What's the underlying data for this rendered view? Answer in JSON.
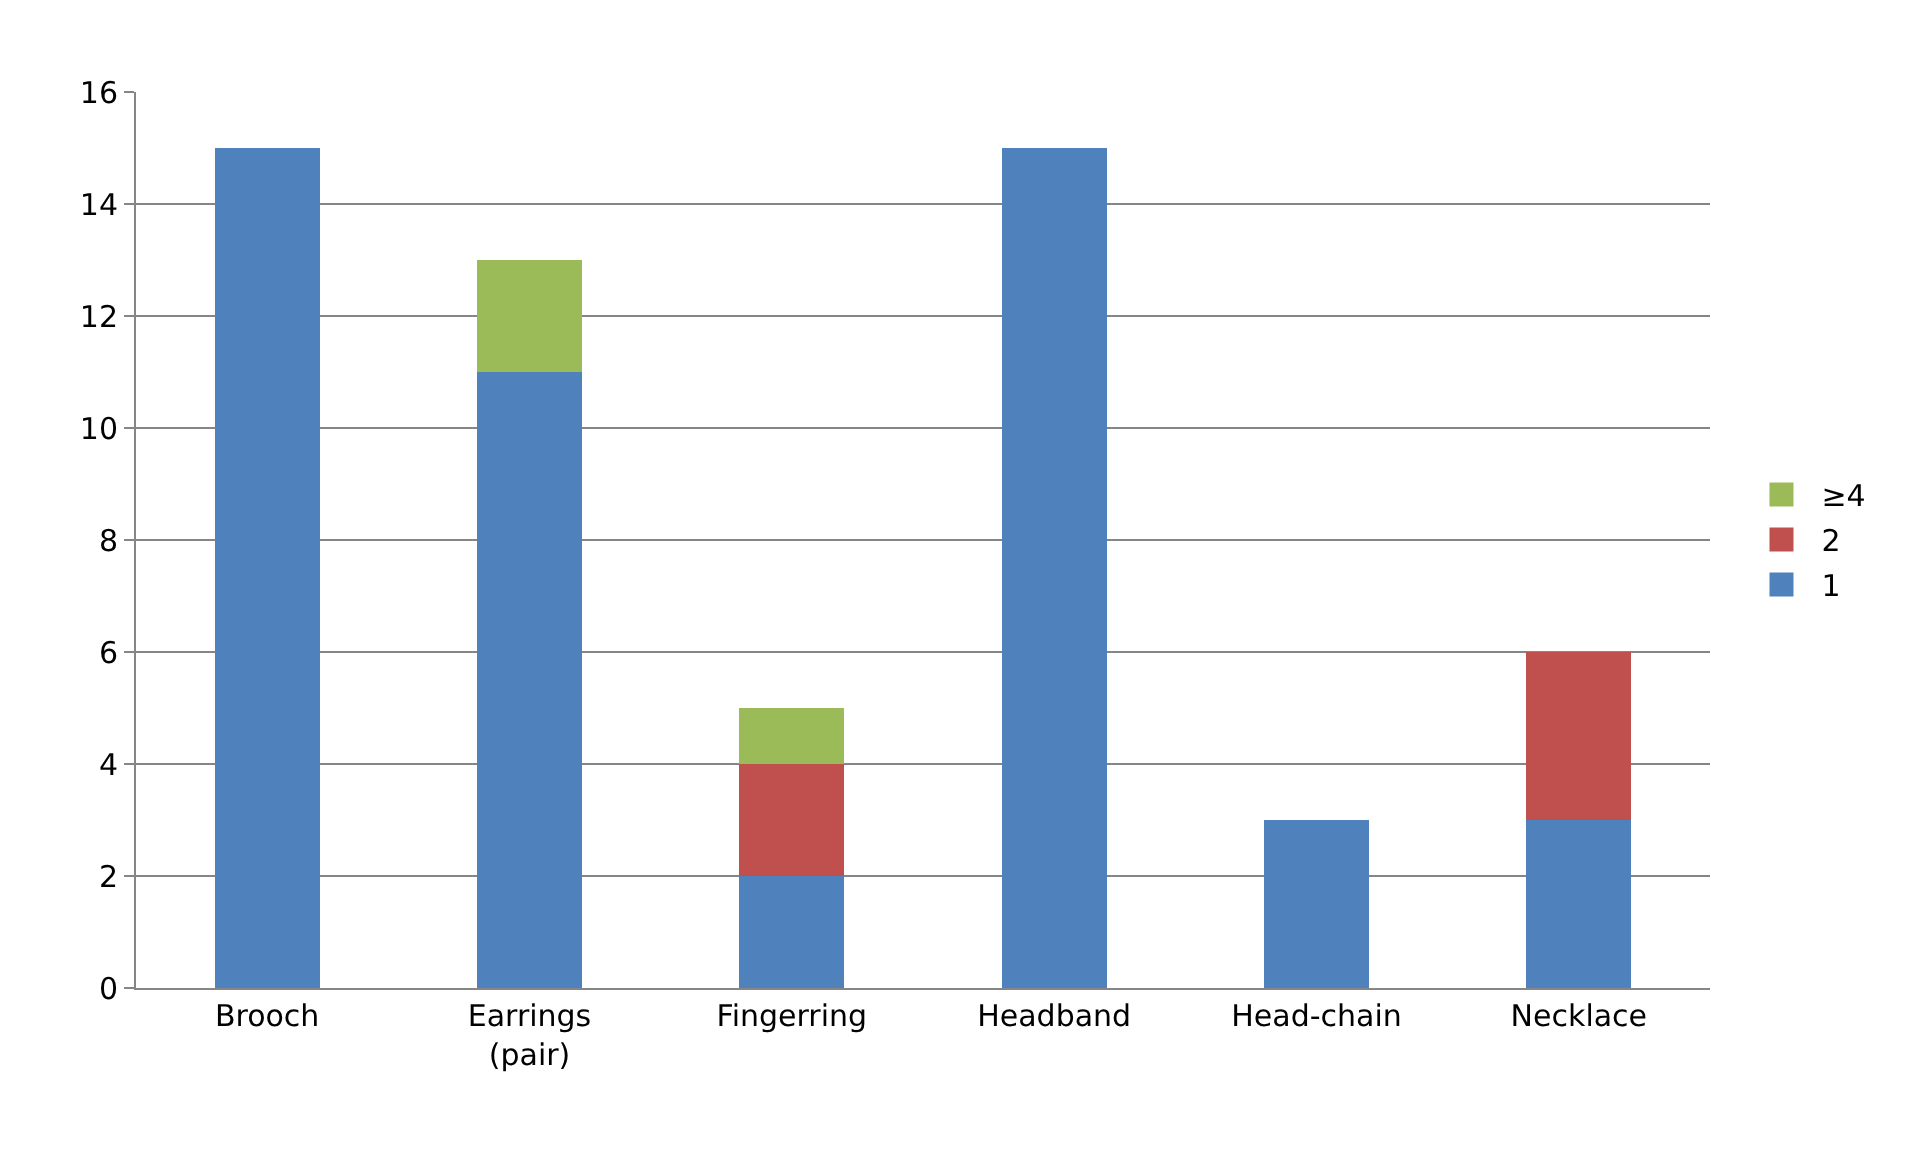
{
  "chart_data": {
    "type": "bar",
    "stacked": true,
    "categories": [
      "Brooch",
      "Earrings\n(pair)",
      "Fingerring",
      "Headband",
      "Head-chain",
      "Necklace"
    ],
    "series": [
      {
        "name": "1",
        "color": "#4f81bd",
        "values": [
          15,
          11,
          2,
          15,
          3,
          3
        ]
      },
      {
        "name": "2",
        "color": "#c0504d",
        "values": [
          0,
          0,
          2,
          0,
          0,
          3
        ]
      },
      {
        "name": "≥4",
        "color": "#9bbb59",
        "values": [
          0,
          2,
          1,
          0,
          0,
          0
        ]
      }
    ],
    "ylim": [
      0,
      16
    ],
    "yticks": [
      0,
      2,
      4,
      6,
      8,
      10,
      12,
      14,
      16
    ],
    "grid": "y",
    "legend": "right"
  }
}
